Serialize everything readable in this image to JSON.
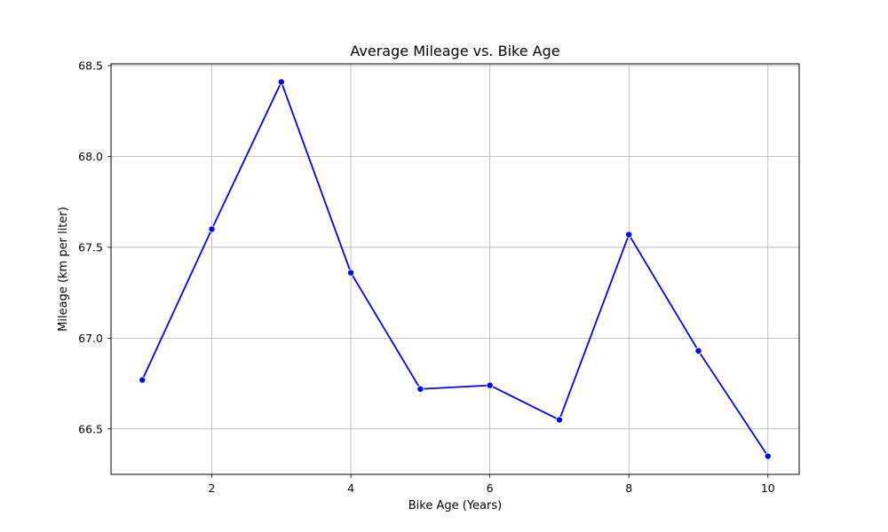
{
  "chart_data": {
    "type": "line",
    "title": "Average Mileage vs. Bike Age",
    "xlabel": "Bike Age (Years)",
    "ylabel": "Mileage (km per liter)",
    "x": [
      1,
      2,
      3,
      4,
      5,
      6,
      7,
      8,
      9,
      10
    ],
    "series": [
      {
        "values": [
          66.77,
          67.6,
          68.41,
          67.36,
          66.72,
          66.74,
          66.55,
          67.57,
          66.93,
          66.35
        ]
      }
    ],
    "xlim": [
      0.55,
      10.45
    ],
    "ylim": [
      66.25,
      68.51
    ],
    "xticks": [
      "2",
      "4",
      "6",
      "8",
      "10"
    ],
    "yticks": [
      "66.5",
      "67.0",
      "67.5",
      "68.0",
      "68.5"
    ],
    "grid": true,
    "line_color": "#0000ff",
    "marker": "circle"
  }
}
